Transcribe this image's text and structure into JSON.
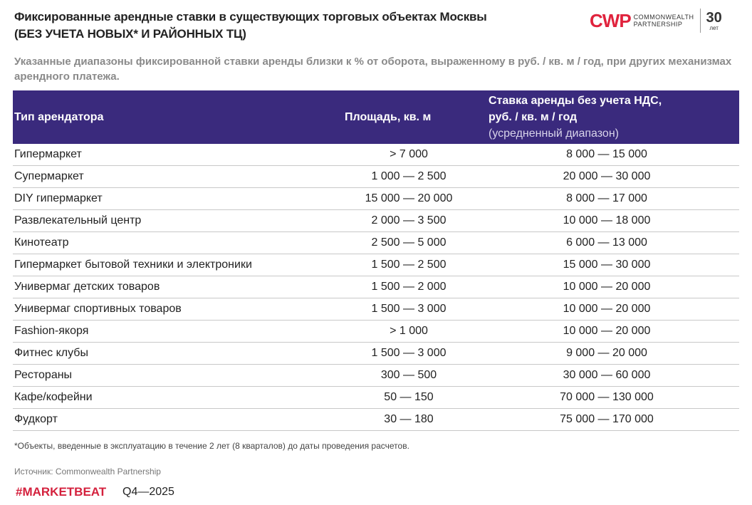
{
  "header": {
    "title": [
      "Фиксированные арендные ставки в существующих торговых объектах Москвы",
      "(БЕЗ УЧЕТА НОВЫХ* И РАЙОННЫХ ТЦ)"
    ],
    "subtitle": "Указанные диапазоны фиксированной ставки аренды близки к % от оборота, выраженному в руб. / кв. м / год, при других механизмах арендного платежа."
  },
  "logo": {
    "letters": "CWP",
    "name": [
      "COMMONWEALTH",
      "PARTNERSHIP"
    ],
    "years": "30",
    "years_unit": "лет"
  },
  "table": {
    "columns": [
      "Тип арендатора",
      "Площадь, кв. м",
      [
        "Ставка аренды без учета НДС,",
        "руб. / кв. м / год",
        "(усредненный диапазон)"
      ]
    ],
    "rows": [
      [
        "Гипермаркет",
        "> 7 000",
        "8 000 — 15 000"
      ],
      [
        "Супермаркет",
        "1 000 — 2 500",
        "20 000 — 30 000"
      ],
      [
        "DIY гипермаркет",
        "15 000 — 20 000",
        "8 000 — 17 000"
      ],
      [
        "Развлекательный центр",
        "2 000 — 3 500",
        "10 000 — 18 000"
      ],
      [
        "Кинотеатр",
        "2 500 — 5 000",
        "6 000 — 13 000"
      ],
      [
        "Гипермаркет бытовой техники и электроники",
        "1 500 — 2 500",
        "15 000 — 30 000"
      ],
      [
        "Универмаг детских товаров",
        "1 500 — 2 000",
        "10 000 — 20 000"
      ],
      [
        "Универмаг спортивных товаров",
        "1 500 — 3 000",
        "10 000 — 20 000"
      ],
      [
        "Fashion-якоря",
        "> 1 000",
        "10 000 — 20 000"
      ],
      [
        "Фитнес клубы",
        "1 500 — 3 000",
        "9 000 — 20 000"
      ],
      [
        "Рестораны",
        "300 — 500",
        "30 000 — 60 000"
      ],
      [
        "Кафе/кофейни",
        "50 — 150",
        "70 000 — 130 000"
      ],
      [
        "Фудкорт",
        "30 — 180",
        "75 000 — 170 000"
      ]
    ]
  },
  "footer": {
    "footnote": "*Объекты, введенные в эксплуатацию в течение 2 лет (8 кварталов) до даты проведения расчетов.",
    "source": "Источник: Commonwealth Partnership",
    "brand": "#MARKETBEAT",
    "period": "Q4—2025"
  }
}
